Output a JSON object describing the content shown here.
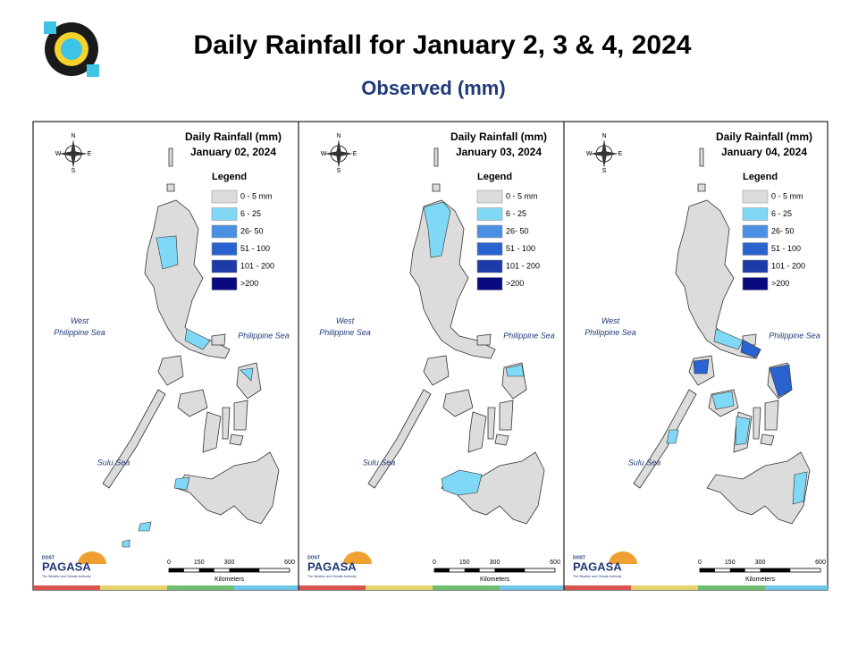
{
  "header": {
    "title": "Daily Rainfall for January 2, 3 & 4, 2024",
    "subtitle": "Observed (mm)"
  },
  "legend": {
    "title": "Legend",
    "items": [
      {
        "label": "0 - 5 mm",
        "color": "#dcdcdc"
      },
      {
        "label": "6 - 25",
        "color": "#7fd8f5"
      },
      {
        "label": "26- 50",
        "color": "#4a90e2"
      },
      {
        "label": "51 - 100",
        "color": "#2a62d0"
      },
      {
        "label": "101 - 200",
        "color": "#1d3aa8"
      },
      {
        "label": ">200",
        "color": "#0a0a80"
      }
    ]
  },
  "panels": [
    {
      "title": "Daily Rainfall (mm)",
      "date": "January 02, 2024"
    },
    {
      "title": "Daily Rainfall (mm)",
      "date": "January 03, 2024"
    },
    {
      "title": "Daily Rainfall (mm)",
      "date": "January 04, 2024"
    }
  ],
  "compass": {
    "n": "N",
    "w": "W",
    "e": "E",
    "s": "S"
  },
  "seas": {
    "west": [
      "West",
      "Philippine Sea"
    ],
    "east": "Philippine Sea",
    "sulu": "Sulu Sea"
  },
  "scale": {
    "ticks": [
      0,
      150,
      300,
      600
    ],
    "unit": "Kilometers"
  },
  "logo": {
    "agency": "DOST",
    "name": "PAGASA",
    "tagline": "The Weather and Climate Authority"
  }
}
